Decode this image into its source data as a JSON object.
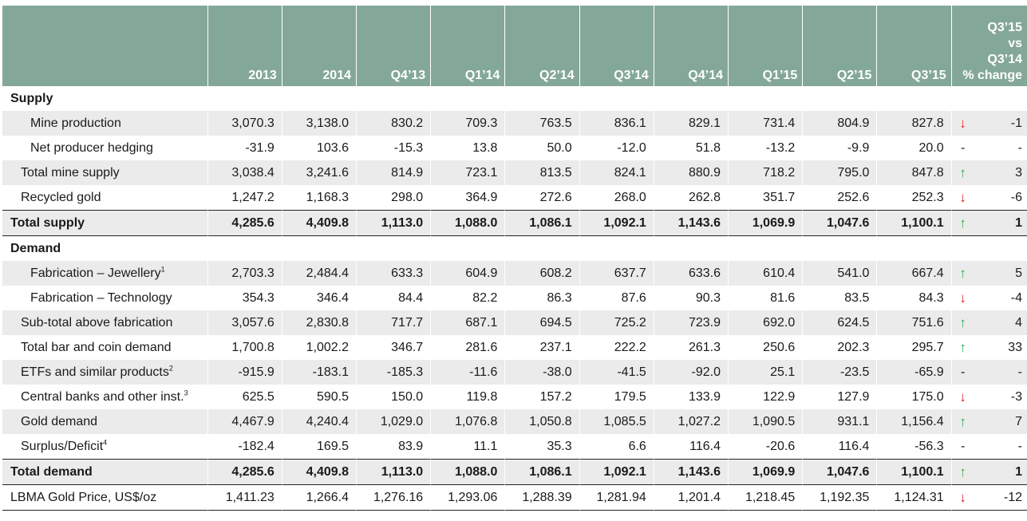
{
  "header": {
    "label": "",
    "years": [
      "2013",
      "2014",
      "Q4’13",
      "Q1’14",
      "Q2’14",
      "Q3’14",
      "Q4’14",
      "Q1’15",
      "Q2’15",
      "Q3’15"
    ],
    "pct_lines": [
      "Q3’15",
      "vs",
      "Q3’14",
      "% change"
    ]
  },
  "supply_heading": "Supply",
  "demand_heading": "Demand",
  "rows": [
    {
      "label": "Mine production",
      "sup": "",
      "values": [
        "3,070.3",
        "3,138.0",
        "830.2",
        "709.3",
        "763.5",
        "836.1",
        "829.1",
        "731.4",
        "804.9",
        "827.8"
      ],
      "trend": "down",
      "pct": "-1"
    },
    {
      "label": "Net producer hedging",
      "sup": "",
      "values": [
        "-31.9",
        "103.6",
        "-15.3",
        "13.8",
        "50.0",
        "-12.0",
        "51.8",
        "-13.2",
        "-9.9",
        "20.0"
      ],
      "trend": "-",
      "pct": "-"
    },
    {
      "label": "Total mine supply",
      "sup": "",
      "values": [
        "3,038.4",
        "3,241.6",
        "814.9",
        "723.1",
        "813.5",
        "824.1",
        "880.9",
        "718.2",
        "795.0",
        "847.8"
      ],
      "trend": "up",
      "pct": "3"
    },
    {
      "label": "Recycled gold",
      "sup": "",
      "values": [
        "1,247.2",
        "1,168.3",
        "298.0",
        "364.9",
        "272.6",
        "268.0",
        "262.8",
        "351.7",
        "252.6",
        "252.3"
      ],
      "trend": "down",
      "pct": "-6"
    },
    {
      "label": "Total supply",
      "sup": "",
      "values": [
        "4,285.6",
        "4,409.8",
        "1,113.0",
        "1,088.0",
        "1,086.1",
        "1,092.1",
        "1,143.6",
        "1,069.9",
        "1,047.6",
        "1,100.1"
      ],
      "trend": "up",
      "pct": "1"
    },
    {
      "label": "Fabrication – Jewellery",
      "sup": "1",
      "values": [
        "2,703.3",
        "2,484.4",
        "633.3",
        "604.9",
        "608.2",
        "637.7",
        "633.6",
        "610.4",
        "541.0",
        "667.4"
      ],
      "trend": "up",
      "pct": "5"
    },
    {
      "label": "Fabrication – Technology",
      "sup": "",
      "values": [
        "354.3",
        "346.4",
        "84.4",
        "82.2",
        "86.3",
        "87.6",
        "90.3",
        "81.6",
        "83.5",
        "84.3"
      ],
      "trend": "down",
      "pct": "-4"
    },
    {
      "label": "Sub-total above fabrication",
      "sup": "",
      "values": [
        "3,057.6",
        "2,830.8",
        "717.7",
        "687.1",
        "694.5",
        "725.2",
        "723.9",
        "692.0",
        "624.5",
        "751.6"
      ],
      "trend": "up",
      "pct": "4"
    },
    {
      "label": "Total bar and coin demand",
      "sup": "",
      "values": [
        "1,700.8",
        "1,002.2",
        "346.7",
        "281.6",
        "237.1",
        "222.2",
        "261.3",
        "250.6",
        "202.3",
        "295.7"
      ],
      "trend": "up",
      "pct": "33"
    },
    {
      "label": "ETFs and similar products",
      "sup": "2",
      "values": [
        "-915.9",
        "-183.1",
        "-185.3",
        "-11.6",
        "-38.0",
        "-41.5",
        "-92.0",
        "25.1",
        "-23.5",
        "-65.9"
      ],
      "trend": "-",
      "pct": "-"
    },
    {
      "label": "Central banks and other inst.",
      "sup": "3",
      "values": [
        "625.5",
        "590.5",
        "150.0",
        "119.8",
        "157.2",
        "179.5",
        "133.9",
        "122.9",
        "127.9",
        "175.0"
      ],
      "trend": "down",
      "pct": "-3"
    },
    {
      "label": "Gold demand",
      "sup": "",
      "values": [
        "4,467.9",
        "4,240.4",
        "1,029.0",
        "1,076.8",
        "1,050.8",
        "1,085.5",
        "1,027.2",
        "1,090.5",
        "931.1",
        "1,156.4"
      ],
      "trend": "up",
      "pct": "7"
    },
    {
      "label": "Surplus/Deficit",
      "sup": "4",
      "values": [
        "-182.4",
        "169.5",
        "83.9",
        "11.1",
        "35.3",
        "6.6",
        "116.4",
        "-20.6",
        "116.4",
        "-56.3"
      ],
      "trend": "-",
      "pct": "-"
    },
    {
      "label": "Total demand",
      "sup": "",
      "values": [
        "4,285.6",
        "4,409.8",
        "1,113.0",
        "1,088.0",
        "1,086.1",
        "1,092.1",
        "1,143.6",
        "1,069.9",
        "1,047.6",
        "1,100.1"
      ],
      "trend": "up",
      "pct": "1"
    },
    {
      "label": "LBMA Gold Price, US$/oz",
      "sup": "",
      "values": [
        "1,411.23",
        "1,266.4",
        "1,276.16",
        "1,293.06",
        "1,288.39",
        "1,281.94",
        "1,201.4",
        "1,218.45",
        "1,192.35",
        "1,124.31"
      ],
      "trend": "down",
      "pct": "-12"
    }
  ],
  "icons": {
    "up": "arrow-up-icon",
    "down": "arrow-down-icon"
  },
  "colors": {
    "header_bg": "#84a898",
    "up": "#2eaa4a",
    "down": "#e02020",
    "row_shade": "#ebebeb"
  }
}
